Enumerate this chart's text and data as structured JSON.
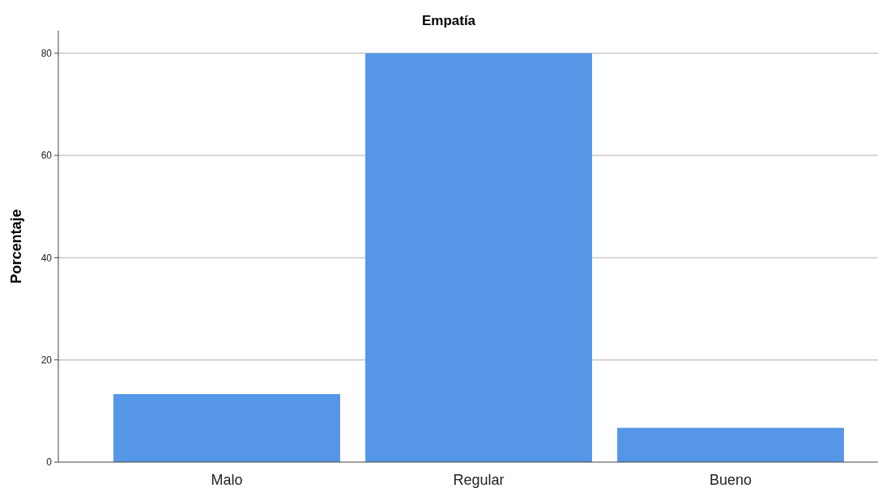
{
  "chart_data": {
    "type": "bar",
    "title": "Empatía",
    "ylabel": "Porcentaje",
    "categories": [
      "Malo",
      "Regular",
      "Bueno"
    ],
    "values": [
      13.3,
      80.0,
      6.7
    ],
    "color": "#5597e6",
    "ylim": [
      0,
      84.4
    ],
    "yticks": [
      0,
      20,
      40,
      60,
      80
    ],
    "grid": "y"
  }
}
